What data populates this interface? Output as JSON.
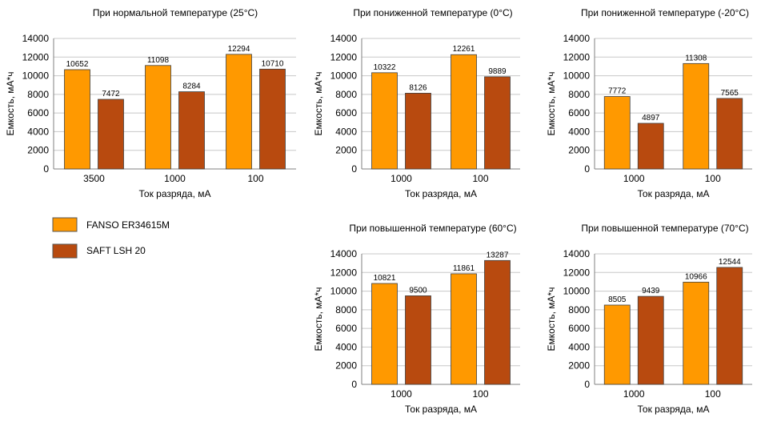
{
  "legend": {
    "items": [
      {
        "label": "FANSO ER34615M",
        "color": "#FF9900"
      },
      {
        "label": "SAFT LSH 20",
        "color": "#B84A0F"
      }
    ]
  },
  "chart_data": [
    {
      "type": "bar",
      "title": "При нормальной температуре (25°C)",
      "xlabel": "Ток разряда, мА",
      "ylabel": "Емкость, мА*ч",
      "ylim": [
        0,
        14000
      ],
      "yticks": [
        0,
        2000,
        4000,
        6000,
        8000,
        10000,
        12000,
        14000
      ],
      "categories": [
        "3500",
        "1000",
        "100"
      ],
      "series": [
        {
          "name": "FANSO ER34615M",
          "values": [
            10652,
            11098,
            12294
          ]
        },
        {
          "name": "SAFT LSH 20",
          "values": [
            7472,
            8284,
            10710
          ]
        }
      ]
    },
    {
      "type": "bar",
      "title": "При пониженной температуре (0°C)",
      "xlabel": "Ток разряда, мА",
      "ylabel": "Емкость, мА*ч",
      "ylim": [
        0,
        14000
      ],
      "yticks": [
        0,
        2000,
        4000,
        6000,
        8000,
        10000,
        12000,
        14000
      ],
      "categories": [
        "1000",
        "100"
      ],
      "series": [
        {
          "name": "FANSO ER34615M",
          "values": [
            10322,
            12261
          ]
        },
        {
          "name": "SAFT LSH 20",
          "values": [
            8126,
            9889
          ]
        }
      ]
    },
    {
      "type": "bar",
      "title": "При пониженной температуре (-20°C)",
      "xlabel": "Ток разряда, мА",
      "ylabel": "Емкость, мА*ч",
      "ylim": [
        0,
        14000
      ],
      "yticks": [
        0,
        2000,
        4000,
        6000,
        8000,
        10000,
        12000,
        14000
      ],
      "categories": [
        "1000",
        "100"
      ],
      "series": [
        {
          "name": "FANSO ER34615M",
          "values": [
            7772,
            11308
          ]
        },
        {
          "name": "SAFT LSH 20",
          "values": [
            4897,
            7565
          ]
        }
      ]
    },
    {
      "type": "bar",
      "title": "При повышенной температуре (60°C)",
      "xlabel": "Ток разряда, мА",
      "ylabel": "Емкость, мА*ч",
      "ylim": [
        0,
        14000
      ],
      "yticks": [
        0,
        2000,
        4000,
        6000,
        8000,
        10000,
        12000,
        14000
      ],
      "categories": [
        "1000",
        "100"
      ],
      "series": [
        {
          "name": "FANSO ER34615M",
          "values": [
            10821,
            11861
          ]
        },
        {
          "name": "SAFT LSH 20",
          "values": [
            9500,
            13287
          ]
        }
      ]
    },
    {
      "type": "bar",
      "title": "При повышенной температуре (70°C)",
      "xlabel": "Ток разряда, мА",
      "ylabel": "Емкость, мА*ч",
      "ylim": [
        0,
        14000
      ],
      "yticks": [
        0,
        2000,
        4000,
        6000,
        8000,
        10000,
        12000,
        14000
      ],
      "categories": [
        "1000",
        "100"
      ],
      "series": [
        {
          "name": "FANSO ER34615M",
          "values": [
            8505,
            10966
          ]
        },
        {
          "name": "SAFT LSH 20",
          "values": [
            9439,
            12544
          ]
        }
      ]
    }
  ]
}
